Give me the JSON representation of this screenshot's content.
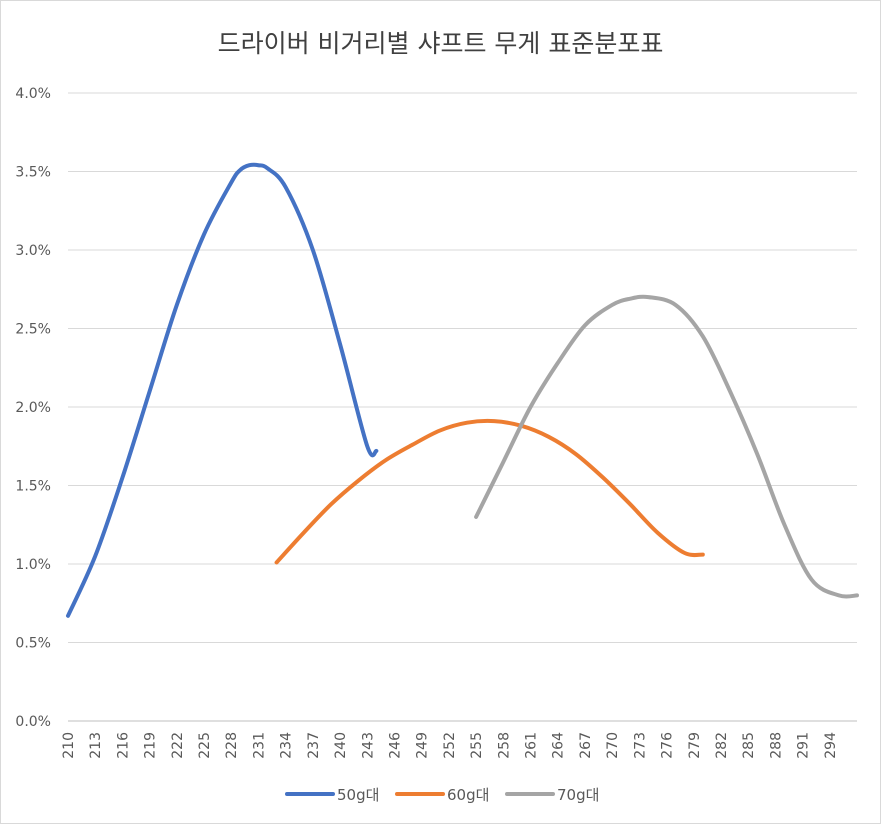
{
  "chart_data": {
    "type": "line",
    "title": "드라이버 비거리별 샤프트 무게 표준분포표",
    "xlabel": "",
    "ylabel": "",
    "ylim": [
      0,
      0.04
    ],
    "yticks": [
      "0.0%",
      "0.5%",
      "1.0%",
      "1.5%",
      "2.0%",
      "2.5%",
      "3.0%",
      "3.5%",
      "4.0%"
    ],
    "xticks": [
      "210",
      "213",
      "216",
      "219",
      "222",
      "225",
      "228",
      "231",
      "234",
      "237",
      "240",
      "243",
      "246",
      "249",
      "252",
      "255",
      "258",
      "261",
      "264",
      "267",
      "270",
      "273",
      "276",
      "279",
      "282",
      "285",
      "288",
      "291",
      "294"
    ],
    "grid": true,
    "legend_position": "bottom",
    "series": [
      {
        "name": "50g대",
        "color": "#4472c4",
        "x": [
          210,
          213,
          216,
          219,
          222,
          225,
          228,
          229,
          230,
          231,
          232,
          234,
          237,
          240,
          243,
          244
        ],
        "values": [
          0.0067,
          0.0105,
          0.0155,
          0.021,
          0.0265,
          0.031,
          0.0343,
          0.0351,
          0.0354,
          0.0354,
          0.0352,
          0.034,
          0.03,
          0.024,
          0.0175,
          0.0172
        ]
      },
      {
        "name": "60g대",
        "color": "#ed7d31",
        "x": [
          233,
          236,
          239,
          242,
          245,
          248,
          251,
          254,
          257,
          260,
          263,
          266,
          269,
          272,
          275,
          278,
          280
        ],
        "values": [
          0.0101,
          0.012,
          0.0138,
          0.0153,
          0.0166,
          0.0176,
          0.0185,
          0.019,
          0.0191,
          0.0188,
          0.0181,
          0.017,
          0.0155,
          0.0138,
          0.012,
          0.0107,
          0.0106
        ]
      },
      {
        "name": "70g대",
        "color": "#a5a5a5",
        "x": [
          255,
          258,
          261,
          264,
          267,
          270,
          272,
          274,
          277,
          280,
          283,
          286,
          289,
          292,
          295,
          297
        ],
        "values": [
          0.013,
          0.0165,
          0.02,
          0.0228,
          0.0252,
          0.0265,
          0.0269,
          0.027,
          0.0265,
          0.0245,
          0.021,
          0.017,
          0.0125,
          0.009,
          0.008,
          0.008
        ]
      }
    ]
  }
}
